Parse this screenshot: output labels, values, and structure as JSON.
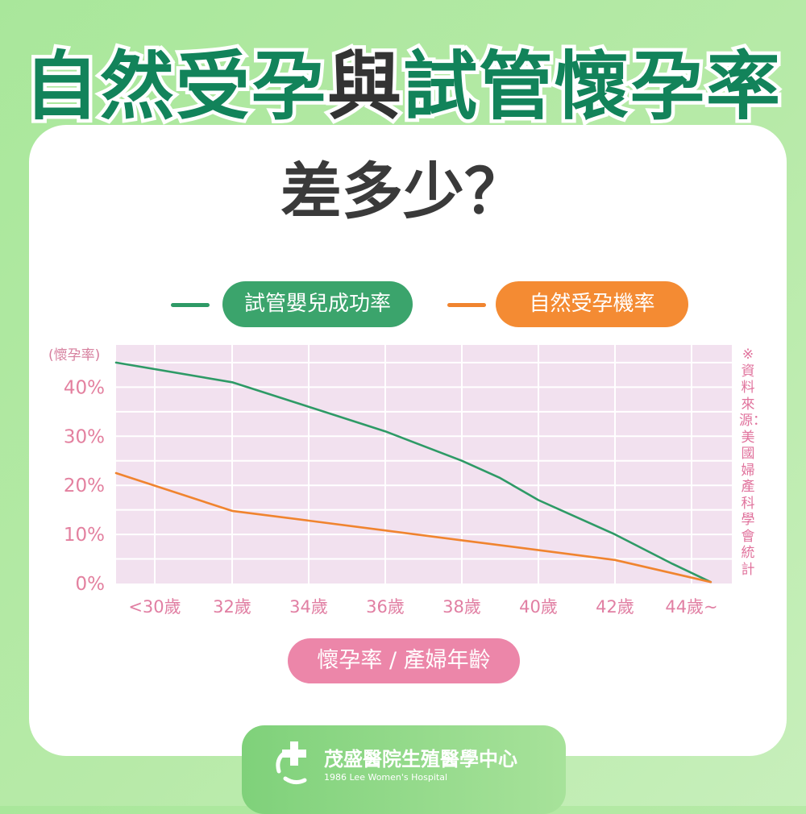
{
  "heading": {
    "title_part1": "自然受孕",
    "title_part2": "與",
    "title_part3": "試管懷孕率",
    "subtitle": "差多少？"
  },
  "source_note": "※資料來源：美國婦產科學會統計",
  "footer": {
    "name": "茂盛醫院生殖醫學中心",
    "english": "1986 Lee Women's Hospital"
  },
  "colors": {
    "ivf": "#2e9a66",
    "natural": "#f0842f",
    "title_green": "#12835a",
    "pink": "#ec86a9"
  },
  "chart_data": {
    "type": "line",
    "xlabel": "懷孕率 / 產婦年齡",
    "ylabel": "(懷孕率)",
    "categories": [
      "<30歲",
      "32歲",
      "34歲",
      "36歲",
      "38歲",
      "40歲",
      "42歲",
      "44歲~"
    ],
    "y_ticks": [
      "0%",
      "10%",
      "20%",
      "30%",
      "40%"
    ],
    "ylim": [
      0,
      45
    ],
    "grid": true,
    "legend_position": "top",
    "series": [
      {
        "name": "試管嬰兒成功率",
        "color": "#2e9a66",
        "points": [
          [
            29,
            45
          ],
          [
            32,
            41
          ],
          [
            34,
            36
          ],
          [
            36,
            31
          ],
          [
            38,
            25
          ],
          [
            39,
            21.5
          ],
          [
            40,
            17
          ],
          [
            42,
            10
          ],
          [
            43.5,
            4
          ],
          [
            44.5,
            0.3
          ]
        ]
      },
      {
        "name": "自然受孕機率",
        "color": "#f0842f",
        "points": [
          [
            29,
            22.5
          ],
          [
            32,
            14.8
          ],
          [
            34,
            12.8
          ],
          [
            36,
            10.8
          ],
          [
            38,
            8.8
          ],
          [
            40,
            6.8
          ],
          [
            42,
            4.8
          ],
          [
            44.5,
            0.3
          ]
        ]
      }
    ]
  }
}
